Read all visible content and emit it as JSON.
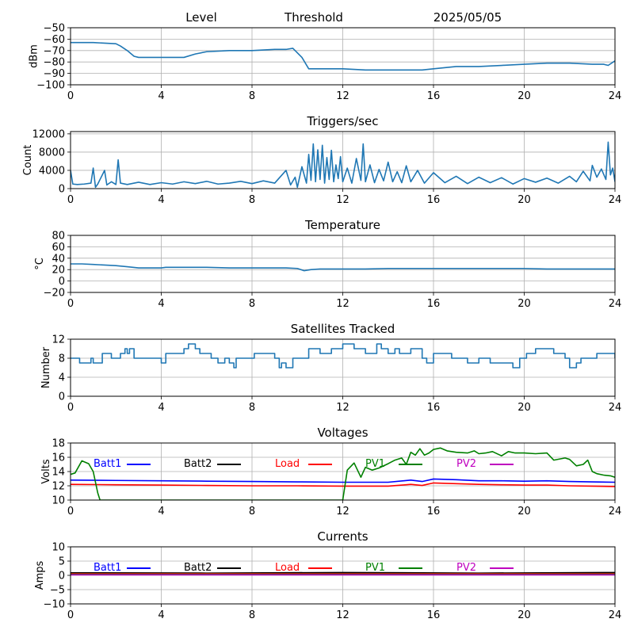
{
  "figure": {
    "header_left": "Level",
    "header_mid": "Threshold",
    "header_date": "2025/05/05"
  },
  "chart_data": [
    {
      "type": "line",
      "title": "",
      "xlabel": "",
      "ylabel": "dBm",
      "xlim": [
        0,
        24
      ],
      "ylim": [
        -100,
        -50
      ],
      "xticks": [
        0,
        4,
        8,
        12,
        16,
        20,
        24
      ],
      "yticks": [
        -100,
        -90,
        -80,
        -70,
        -60,
        -50
      ],
      "grid": true,
      "series": [
        {
          "color": "#1f77b4",
          "x": [
            0,
            1,
            2,
            2.2,
            2.5,
            2.8,
            3,
            3.5,
            4,
            5,
            5.5,
            6,
            7,
            8,
            9,
            9.5,
            9.8,
            10.2,
            10.5,
            11,
            12,
            13,
            14,
            15,
            15.5,
            16,
            17,
            18,
            19,
            20,
            21,
            22,
            23,
            23.5,
            23.7,
            24
          ],
          "y": [
            -63,
            -63,
            -64,
            -66,
            -70,
            -75,
            -76,
            -76,
            -76,
            -76,
            -73,
            -71,
            -70,
            -70,
            -69,
            -69,
            -68,
            -76,
            -86,
            -86,
            -86,
            -87,
            -87,
            -87,
            -87,
            -86,
            -84,
            -84,
            -83,
            -82,
            -81,
            -81,
            -82,
            -82,
            -83,
            -79
          ]
        }
      ]
    },
    {
      "type": "line",
      "title": "Triggers/sec",
      "xlabel": "",
      "ylabel": "Count",
      "xlim": [
        0,
        24
      ],
      "ylim": [
        0,
        12500
      ],
      "xticks": [
        0,
        4,
        8,
        12,
        16,
        20,
        24
      ],
      "yticks": [
        0,
        4000,
        8000,
        12000
      ],
      "grid": true,
      "series": [
        {
          "color": "#1f77b4",
          "x": [
            0,
            0.1,
            0.3,
            0.6,
            0.9,
            1.0,
            1.1,
            1.2,
            1.5,
            1.6,
            1.8,
            2.0,
            2.1,
            2.2,
            2.5,
            3.0,
            3.5,
            4.0,
            4.5,
            5.0,
            5.5,
            6.0,
            6.5,
            7.0,
            7.5,
            8.0,
            8.5,
            9.0,
            9.5,
            9.7,
            9.9,
            10.0,
            10.2,
            10.4,
            10.5,
            10.6,
            10.7,
            10.8,
            10.9,
            11.0,
            11.1,
            11.2,
            11.3,
            11.4,
            11.5,
            11.6,
            11.7,
            11.8,
            11.9,
            12.0,
            12.2,
            12.4,
            12.6,
            12.8,
            12.9,
            13.0,
            13.2,
            13.4,
            13.6,
            13.8,
            14.0,
            14.2,
            14.4,
            14.6,
            14.8,
            15.0,
            15.3,
            15.6,
            16.0,
            16.5,
            17.0,
            17.5,
            18.0,
            18.5,
            19.0,
            19.5,
            20.0,
            20.5,
            21.0,
            21.5,
            22.0,
            22.3,
            22.6,
            22.9,
            23.0,
            23.2,
            23.4,
            23.6,
            23.7,
            23.8,
            23.9,
            24.0
          ],
          "y": [
            4000,
            1000,
            900,
            1000,
            1200,
            4500,
            300,
            1000,
            4000,
            800,
            1500,
            900,
            6300,
            1200,
            900,
            1400,
            900,
            1300,
            1000,
            1500,
            1100,
            1600,
            1000,
            1200,
            1600,
            1100,
            1700,
            1200,
            4000,
            800,
            2500,
            300,
            4800,
            1200,
            7500,
            1800,
            9800,
            1500,
            8500,
            2000,
            9500,
            1200,
            6800,
            2000,
            8400,
            1500,
            5200,
            2200,
            7000,
            1500,
            4500,
            1200,
            6600,
            1800,
            9800,
            1500,
            5200,
            1300,
            4200,
            1700,
            5800,
            1500,
            3700,
            1300,
            5000,
            1500,
            4000,
            1200,
            3500,
            1300,
            2700,
            1100,
            2500,
            1300,
            2400,
            1000,
            2200,
            1400,
            2300,
            1200,
            2700,
            1500,
            3800,
            1700,
            5100,
            2500,
            4300,
            2000,
            10200,
            3000,
            4500,
            1500
          ]
        }
      ]
    },
    {
      "type": "line",
      "title": "Temperature",
      "xlabel": "",
      "ylabel": "°C",
      "xlim": [
        0,
        24
      ],
      "ylim": [
        -20,
        80
      ],
      "xticks": [
        0,
        4,
        8,
        12,
        16,
        20,
        24
      ],
      "yticks": [
        -20,
        0,
        20,
        40,
        60,
        80
      ],
      "grid": true,
      "series": [
        {
          "color": "#1f77b4",
          "x": [
            0,
            0.5,
            1,
            1.5,
            2,
            2.5,
            3,
            3.5,
            4,
            4.2,
            5,
            6,
            7,
            8,
            9,
            9.5,
            10,
            10.3,
            10.6,
            11,
            12,
            13,
            14,
            15,
            16,
            17,
            18,
            19,
            20,
            21,
            22,
            23,
            24
          ],
          "y": [
            30,
            30,
            29,
            28,
            27,
            25,
            23,
            23,
            23,
            24,
            24,
            24,
            23,
            23,
            23,
            23,
            22,
            18,
            20,
            21,
            21,
            21,
            22,
            22,
            22,
            22,
            22,
            22,
            22,
            21,
            21,
            21,
            21
          ]
        }
      ]
    },
    {
      "type": "line",
      "title": "Satellites Tracked",
      "xlabel": "",
      "ylabel": "Number",
      "xlim": [
        0,
        24
      ],
      "ylim": [
        0,
        12
      ],
      "xticks": [
        0,
        4,
        8,
        12,
        16,
        20,
        24
      ],
      "yticks": [
        0,
        4,
        8,
        12
      ],
      "grid": true,
      "series": [
        {
          "color": "#1f77b4",
          "step": true,
          "x": [
            0,
            0.4,
            0.9,
            1.0,
            1.4,
            1.8,
            2.2,
            2.4,
            2.5,
            2.6,
            2.8,
            3.0,
            3.5,
            3.8,
            4.0,
            4.2,
            5.0,
            5.2,
            5.5,
            5.7,
            6.2,
            6.5,
            6.8,
            7.0,
            7.2,
            7.3,
            8.0,
            8.1,
            9.0,
            9.2,
            9.3,
            9.5,
            9.8,
            10.0,
            10.5,
            11.0,
            11.5,
            12.0,
            12.5,
            13.0,
            13.5,
            13.7,
            14.0,
            14.3,
            14.5,
            15.0,
            15.5,
            15.7,
            16.0,
            16.3,
            16.8,
            17.3,
            17.5,
            18.0,
            18.5,
            19.0,
            19.5,
            19.8,
            20.1,
            20.5,
            21.0,
            21.3,
            21.8,
            22.0,
            22.3,
            22.5,
            23.0,
            23.2,
            23.7,
            24.0
          ],
          "x_note": "",
          "y": [
            8,
            7,
            8,
            7,
            9,
            8,
            9,
            10,
            9,
            10,
            8,
            8,
            8,
            8,
            7,
            9,
            10,
            11,
            10,
            9,
            8,
            7,
            8,
            7,
            6,
            8,
            8,
            9,
            8,
            6,
            7,
            6,
            8,
            8,
            10,
            9,
            10,
            11,
            10,
            9,
            11,
            10,
            9,
            10,
            9,
            10,
            8,
            7,
            9,
            9,
            8,
            8,
            7,
            8,
            7,
            7,
            6,
            8,
            9,
            10,
            10,
            9,
            8,
            6,
            7,
            8,
            8,
            9,
            9,
            8
          ]
        }
      ]
    },
    {
      "type": "line",
      "title": "Voltages",
      "xlabel": "",
      "ylabel": "Volts",
      "xlim": [
        0,
        24
      ],
      "ylim": [
        10,
        18
      ],
      "xticks": [
        0,
        4,
        8,
        12,
        16,
        20,
        24
      ],
      "yticks": [
        10,
        12,
        14,
        16,
        18
      ],
      "grid": true,
      "legend": "inside-top, horizontal",
      "series": [
        {
          "name": "Batt1",
          "color": "#0000ff",
          "x": [
            0,
            2,
            4,
            6,
            8,
            10,
            12,
            14,
            15,
            15.5,
            16,
            17,
            18,
            19,
            20,
            21,
            22,
            23,
            24
          ],
          "y": [
            12.8,
            12.75,
            12.7,
            12.65,
            12.6,
            12.55,
            12.5,
            12.5,
            12.8,
            12.6,
            12.95,
            12.85,
            12.7,
            12.7,
            12.65,
            12.7,
            12.6,
            12.55,
            12.5
          ]
        },
        {
          "name": "Batt2",
          "color": "#000000",
          "x": [],
          "y": []
        },
        {
          "name": "Load",
          "color": "#ff0000",
          "x": [
            0,
            2,
            4,
            6,
            8,
            10,
            12,
            14,
            15,
            15.5,
            16,
            17,
            18,
            19,
            20,
            21,
            22,
            23,
            24
          ],
          "y": [
            12.2,
            12.15,
            12.1,
            12.05,
            12.0,
            12.0,
            11.95,
            11.95,
            12.2,
            12.05,
            12.4,
            12.3,
            12.2,
            12.15,
            12.1,
            12.1,
            12.0,
            11.95,
            11.9
          ]
        },
        {
          "name": "PV1",
          "color": "#008000",
          "x": [
            0,
            0.2,
            0.5,
            0.8,
            1.0,
            1.2,
            1.3,
            12.0,
            12.2,
            12.5,
            12.8,
            13.0,
            13.3,
            13.6,
            14.0,
            14.3,
            14.6,
            14.8,
            15.0,
            15.2,
            15.4,
            15.6,
            15.8,
            16.0,
            16.3,
            16.6,
            17.0,
            17.5,
            17.8,
            18.0,
            18.3,
            18.6,
            19.0,
            19.3,
            19.6,
            20.0,
            20.5,
            21.0,
            21.3,
            21.8,
            22.0,
            22.3,
            22.6,
            22.8,
            23.0,
            23.2,
            23.5,
            23.8,
            24.0
          ],
          "y": [
            13.6,
            13.8,
            15.5,
            15.1,
            14.0,
            11.0,
            10.0,
            10.0,
            14.2,
            15.2,
            13.2,
            14.6,
            14.2,
            14.5,
            15.1,
            15.6,
            15.9,
            15.0,
            16.7,
            16.3,
            17.2,
            16.3,
            16.6,
            17.1,
            17.3,
            16.9,
            16.7,
            16.6,
            16.9,
            16.5,
            16.6,
            16.8,
            16.2,
            16.8,
            16.6,
            16.6,
            16.5,
            16.6,
            15.6,
            15.9,
            15.7,
            14.8,
            15.0,
            15.6,
            14.0,
            13.7,
            13.5,
            13.4,
            13.2
          ]
        },
        {
          "name": "PV2",
          "color": "#bf00bf",
          "x": [],
          "y": []
        }
      ]
    },
    {
      "type": "line",
      "title": "Currents",
      "xlabel": "",
      "ylabel": "Amps",
      "xlim": [
        0,
        24
      ],
      "ylim": [
        -10,
        10
      ],
      "xticks": [
        0,
        4,
        8,
        12,
        16,
        20,
        24
      ],
      "yticks": [
        -10,
        -5,
        0,
        5,
        10
      ],
      "grid": true,
      "legend": "inside-top, horizontal",
      "series": [
        {
          "name": "Batt1",
          "color": "#0000ff",
          "x": [
            0,
            24
          ],
          "y": [
            0.3,
            0.3
          ]
        },
        {
          "name": "Batt2",
          "color": "#000000",
          "x": [
            0,
            6,
            12,
            18,
            24
          ],
          "y": [
            0.9,
            0.8,
            1.0,
            0.8,
            1.0
          ]
        },
        {
          "name": "Load",
          "color": "#ff0000",
          "x": [
            0,
            24
          ],
          "y": [
            0.6,
            0.6
          ]
        },
        {
          "name": "PV1",
          "color": "#008000",
          "x": [
            0,
            24
          ],
          "y": [
            0.4,
            0.4
          ]
        },
        {
          "name": "PV2",
          "color": "#bf00bf",
          "x": [
            0,
            24
          ],
          "y": [
            0.2,
            0.2
          ]
        }
      ]
    }
  ]
}
